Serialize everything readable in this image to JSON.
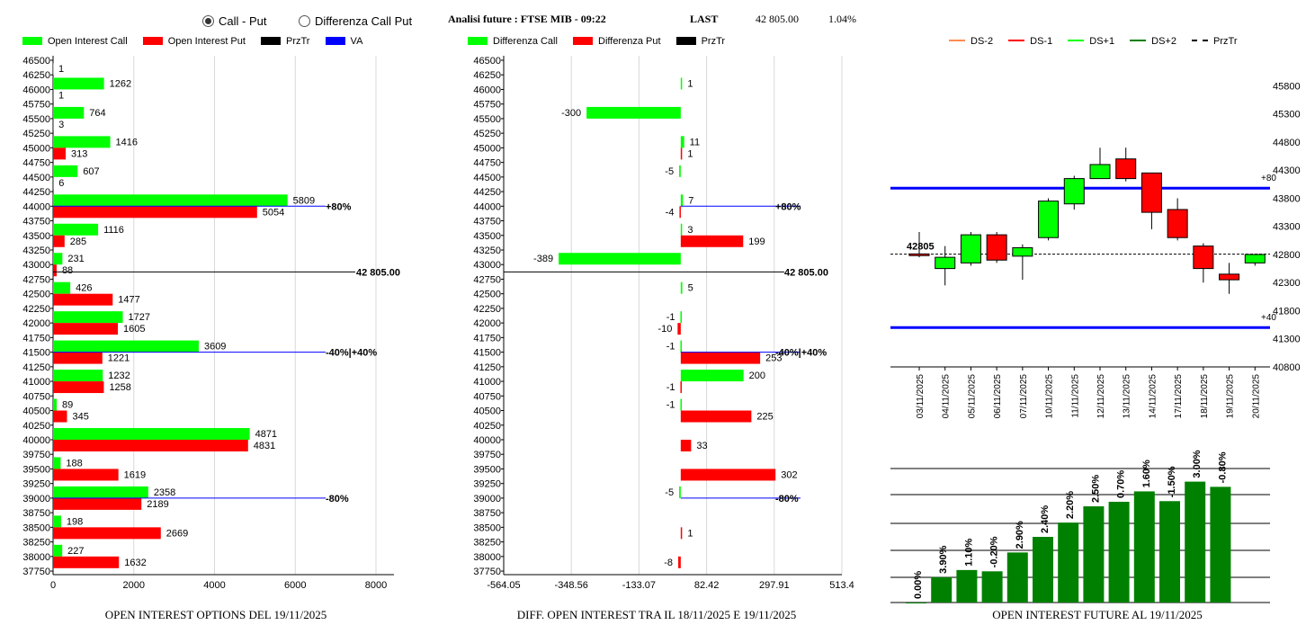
{
  "header": {
    "radio_call_put": "Call - Put",
    "radio_diff": "Differenza Call Put",
    "selected": "call_put",
    "analysis_title": "Analisi future : FTSE MIB - 09:22",
    "last_label": "LAST",
    "last_value": "42 805.00",
    "last_change": "1.04%"
  },
  "colors": {
    "call": "#00ff00",
    "put": "#ff0000",
    "price_line": "#000000",
    "va": "#0000ff",
    "dark_green": "#008000"
  },
  "chart_data": [
    {
      "id": "open_interest",
      "type": "bar",
      "orientation": "horizontal",
      "title": "OPEN INTEREST OPTIONS DEL 19/11/2025",
      "legend": [
        "Open Interest Call",
        "Open Interest Put",
        "PrzTr",
        "VA"
      ],
      "strikes": [
        "46500",
        "46250",
        "46000",
        "45750",
        "45500",
        "45250",
        "45000",
        "44750",
        "44500",
        "44250",
        "44000",
        "43750",
        "43500",
        "43250",
        "43000",
        "42750",
        "42500",
        "42250",
        "42000",
        "41750",
        "41500",
        "41250",
        "41000",
        "40750",
        "40500",
        "40250",
        "40000",
        "39750",
        "39500",
        "39250",
        "39000",
        "38750",
        "38500",
        "38250",
        "38000",
        "37750"
      ],
      "series": [
        {
          "name": "Open Interest Call",
          "points": [
            {
              "strike": "46250",
              "value": 1
            },
            {
              "strike": "46000",
              "value": 1262
            },
            {
              "strike": "45500",
              "value": 764
            },
            {
              "strike": "45000",
              "value": 1416
            },
            {
              "strike": "44500",
              "value": 607
            },
            {
              "strike": "44000",
              "value": 5809
            },
            {
              "strike": "43500",
              "value": 1116
            },
            {
              "strike": "43000",
              "value": 231
            },
            {
              "strike": "42500",
              "value": 426
            },
            {
              "strike": "42000",
              "value": 1727
            },
            {
              "strike": "41500",
              "value": 3609
            },
            {
              "strike": "41000",
              "value": 1232
            },
            {
              "strike": "40500",
              "value": 89
            },
            {
              "strike": "40000",
              "value": 4871
            },
            {
              "strike": "39500",
              "value": 188
            },
            {
              "strike": "39000",
              "value": 2358
            },
            {
              "strike": "38500",
              "value": 198
            },
            {
              "strike": "38000",
              "value": 227
            }
          ]
        },
        {
          "name": "Open Interest Put",
          "points": [
            {
              "strike": "46000",
              "value": 1
            },
            {
              "strike": "45500",
              "value": 3
            },
            {
              "strike": "45000",
              "value": 313
            },
            {
              "strike": "44500",
              "value": 6
            },
            {
              "strike": "44000",
              "value": 5054
            },
            {
              "strike": "43500",
              "value": 285
            },
            {
              "strike": "43000",
              "value": 88
            },
            {
              "strike": "42500",
              "value": 1477
            },
            {
              "strike": "42000",
              "value": 1605
            },
            {
              "strike": "41500",
              "value": 1221
            },
            {
              "strike": "41000",
              "value": 1258
            },
            {
              "strike": "40500",
              "value": 345
            },
            {
              "strike": "40000",
              "value": 4831
            },
            {
              "strike": "39500",
              "value": 1619
            },
            {
              "strike": "39000",
              "value": 2189
            },
            {
              "strike": "38500",
              "value": 2669
            },
            {
              "strike": "38000",
              "value": 1632
            }
          ]
        }
      ],
      "price_line": {
        "label": "42 805.00",
        "value": 42805
      },
      "va_lines": [
        {
          "strike": "44000",
          "label": "+80%"
        },
        {
          "strike": "41500",
          "label": "-40%|+40%"
        },
        {
          "strike": "39000",
          "label": "-80%"
        }
      ],
      "xlim": [
        0,
        8000
      ],
      "xticks": [
        "0",
        "2000",
        "4000",
        "6000",
        "8000"
      ]
    },
    {
      "id": "diff_open_interest",
      "type": "bar",
      "orientation": "horizontal",
      "title": "DIFF. OPEN INTEREST TRA IL 18/11/2025 E 19/11/2025",
      "legend": [
        "Differenza Call",
        "Differenza Put",
        "PrzTr"
      ],
      "strikes": [
        "46500",
        "46250",
        "46000",
        "45750",
        "45500",
        "45250",
        "45000",
        "44750",
        "44500",
        "44250",
        "44000",
        "43750",
        "43500",
        "43250",
        "43000",
        "42750",
        "42500",
        "42250",
        "42000",
        "41750",
        "41500",
        "41250",
        "41000",
        "40750",
        "40500",
        "40250",
        "40000",
        "39750",
        "39500",
        "39250",
        "39000",
        "38750",
        "38500",
        "38250",
        "38000",
        "37750"
      ],
      "series": [
        {
          "name": "Differenza Call",
          "points": [
            {
              "strike": "46000",
              "value": 1
            },
            {
              "strike": "45500",
              "value": -300
            },
            {
              "strike": "45000",
              "value": 11
            },
            {
              "strike": "44500",
              "value": -5
            },
            {
              "strike": "44000",
              "value": 7
            },
            {
              "strike": "43500",
              "value": 3
            },
            {
              "strike": "43000",
              "value": -389
            },
            {
              "strike": "42500",
              "value": 5
            },
            {
              "strike": "42000",
              "value": -1
            },
            {
              "strike": "41500",
              "value": -1
            },
            {
              "strike": "41000",
              "value": 200
            },
            {
              "strike": "40500",
              "value": -1
            },
            {
              "strike": "39000",
              "value": -5
            }
          ]
        },
        {
          "name": "Differenza Put",
          "points": [
            {
              "strike": "45000",
              "value": 1
            },
            {
              "strike": "44000",
              "value": -4
            },
            {
              "strike": "43500",
              "value": 199
            },
            {
              "strike": "42000",
              "value": -10
            },
            {
              "strike": "41500",
              "value": 253
            },
            {
              "strike": "41000",
              "value": -1
            },
            {
              "strike": "40500",
              "value": 225
            },
            {
              "strike": "40000",
              "value": 33
            },
            {
              "strike": "39500",
              "value": 302
            },
            {
              "strike": "38500",
              "value": 1
            },
            {
              "strike": "38000",
              "value": -8
            }
          ]
        }
      ],
      "price_line": {
        "label": "42 805.00",
        "value": 42805
      },
      "va_lines": [
        {
          "strike": "44000",
          "label": "+80%"
        },
        {
          "strike": "41500",
          "label": "-40%|+40%"
        },
        {
          "strike": "39000",
          "label": "-80%"
        }
      ],
      "xlim": [
        -564.05,
        513.4
      ],
      "xticks": [
        "-564.05",
        "-348.56",
        "-133.07",
        "82.42",
        "297.91",
        "513.4"
      ]
    },
    {
      "id": "future_candles",
      "type": "candlestick",
      "legend": [
        "DS-2",
        "DS-1",
        "DS+1",
        "DS+2",
        "PrzTr"
      ],
      "dates": [
        "03/11/2025",
        "04/11/2025",
        "05/11/2025",
        "06/11/2025",
        "07/11/2025",
        "10/11/2025",
        "11/11/2025",
        "12/11/2025",
        "13/11/2025",
        "14/11/2025",
        "17/11/2025",
        "18/11/2025",
        "19/11/2025",
        "20/11/2025"
      ],
      "candles": [
        {
          "open": 42810,
          "close": 42780,
          "high": 43200,
          "low": 42750
        },
        {
          "open": 42550,
          "close": 42750,
          "high": 42950,
          "low": 42250
        },
        {
          "open": 42650,
          "close": 43150,
          "high": 43200,
          "low": 42600
        },
        {
          "open": 43150,
          "close": 42700,
          "high": 43200,
          "low": 42650
        },
        {
          "open": 42770,
          "close": 42920,
          "high": 42980,
          "low": 42350
        },
        {
          "open": 43100,
          "close": 43750,
          "high": 43800,
          "low": 43050
        },
        {
          "open": 43700,
          "close": 44150,
          "high": 44200,
          "low": 43600
        },
        {
          "open": 44150,
          "close": 44400,
          "high": 44700,
          "low": 44150
        },
        {
          "open": 44500,
          "close": 44150,
          "high": 44700,
          "low": 44100
        },
        {
          "open": 44250,
          "close": 43550,
          "high": 44250,
          "low": 43250
        },
        {
          "open": 43600,
          "close": 43100,
          "high": 43800,
          "low": 43050
        },
        {
          "open": 42950,
          "close": 42550,
          "high": 43000,
          "low": 42300
        },
        {
          "open": 42450,
          "close": 42350,
          "high": 42650,
          "low": 42100
        },
        {
          "open": 42650,
          "close": 42800,
          "high": 42800,
          "low": 42600
        }
      ],
      "price_line": {
        "label": "42805",
        "value": 42805
      },
      "levels": [
        {
          "value": 43980,
          "label": "+80"
        },
        {
          "value": 41500,
          "label": "+40"
        }
      ],
      "ylim": [
        40800,
        46000
      ],
      "yticks": [
        "40800",
        "41300",
        "41800",
        "42300",
        "42800",
        "43300",
        "43800",
        "44300",
        "44800",
        "45300",
        "45800"
      ]
    },
    {
      "id": "open_interest_future",
      "type": "bar",
      "title": "OPEN INTEREST FUTURE AL 19/11/2025",
      "categories": [
        "03/11/2025",
        "04/11/2025",
        "05/11/2025",
        "06/11/2025",
        "07/11/2025",
        "10/11/2025",
        "11/11/2025",
        "12/11/2025",
        "13/11/2025",
        "14/11/2025",
        "17/11/2025",
        "18/11/2025",
        "19/11/2025",
        "20/11/2025"
      ],
      "values": [
        0.0,
        3.9,
        1.1,
        -0.2,
        2.9,
        2.4,
        2.2,
        2.5,
        0.7,
        1.6,
        -1.5,
        3.0,
        -0.8,
        0.0
      ],
      "labels": [
        "0.00%",
        "3.90%",
        "1.10%",
        "-0.20%",
        "2.90%",
        "2.40%",
        "2.20%",
        "2.50%",
        "0.70%",
        "1.60%",
        "-1.50%",
        "3.00%",
        "-0.80%",
        ""
      ],
      "cumulative_index": [
        0.0,
        3.9,
        5.0,
        4.8,
        7.7,
        10.1,
        12.3,
        14.8,
        15.5,
        17.1,
        15.6,
        18.6,
        17.8
      ]
    }
  ]
}
